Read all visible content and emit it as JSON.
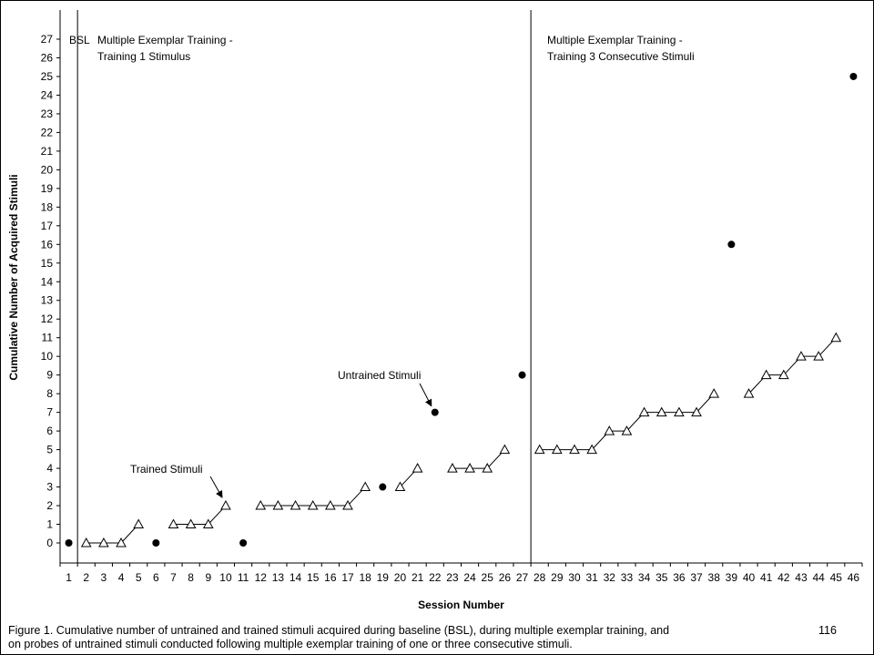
{
  "chart_data": {
    "type": "line",
    "xlabel": "Session Number",
    "ylabel": "Cumulative Number of Acquired Stimuli",
    "xlim": [
      0.5,
      46.5
    ],
    "ylim": [
      0,
      27
    ],
    "grid": false,
    "x_ticks": [
      1,
      2,
      3,
      4,
      5,
      6,
      7,
      8,
      9,
      10,
      11,
      12,
      13,
      14,
      15,
      16,
      17,
      18,
      19,
      20,
      21,
      22,
      23,
      24,
      25,
      26,
      27,
      28,
      29,
      30,
      31,
      32,
      33,
      34,
      35,
      36,
      37,
      38,
      39,
      40,
      41,
      42,
      43,
      44,
      45,
      46
    ],
    "y_ticks": [
      0,
      1,
      2,
      3,
      4,
      5,
      6,
      7,
      8,
      9,
      10,
      11,
      12,
      13,
      14,
      15,
      16,
      17,
      18,
      19,
      20,
      21,
      22,
      23,
      24,
      25,
      26,
      27
    ],
    "trained_segments": [
      [
        [
          2,
          0
        ],
        [
          3,
          0
        ],
        [
          4,
          0
        ],
        [
          5,
          1
        ]
      ],
      [
        [
          7,
          1
        ],
        [
          8,
          1
        ],
        [
          9,
          1
        ],
        [
          10,
          2
        ]
      ],
      [
        [
          12,
          2
        ],
        [
          13,
          2
        ],
        [
          14,
          2
        ],
        [
          15,
          2
        ],
        [
          16,
          2
        ],
        [
          17,
          2
        ],
        [
          18,
          3
        ]
      ],
      [
        [
          20,
          3
        ],
        [
          21,
          4
        ]
      ],
      [
        [
          23,
          4
        ],
        [
          24,
          4
        ],
        [
          25,
          4
        ],
        [
          26,
          5
        ]
      ],
      [
        [
          28,
          5
        ],
        [
          29,
          5
        ],
        [
          30,
          5
        ],
        [
          31,
          5
        ],
        [
          32,
          6
        ],
        [
          33,
          6
        ],
        [
          34,
          7
        ],
        [
          35,
          7
        ],
        [
          36,
          7
        ],
        [
          37,
          7
        ],
        [
          38,
          8
        ]
      ],
      [
        [
          40,
          8
        ],
        [
          41,
          9
        ],
        [
          42,
          9
        ],
        [
          43,
          10
        ],
        [
          44,
          10
        ],
        [
          45,
          11
        ]
      ]
    ],
    "untrained_points": [
      [
        1,
        0
      ],
      [
        6,
        0
      ],
      [
        11,
        0
      ],
      [
        19,
        3
      ],
      [
        22,
        7
      ],
      [
        27,
        9
      ],
      [
        39,
        16
      ],
      [
        46,
        25
      ]
    ],
    "phase_lines": [
      1.5,
      27.5
    ],
    "phase_labels": {
      "bsl": "BSL",
      "phase1_line1": "Multiple Exemplar Training -",
      "phase1_line2": "Training 1 Stimulus",
      "phase2_line1": "Multiple Exemplar Training -",
      "phase2_line2": "Training 3 Consecutive Stimuli"
    },
    "annotations": {
      "trained": {
        "text": "Trained Stimuli",
        "target": [
          10,
          2
        ]
      },
      "untrained": {
        "text": "Untrained Stimuli",
        "target": [
          22,
          7
        ]
      }
    }
  },
  "caption": {
    "line1": "Figure 1. Cumulative number of untrained and trained stimuli acquired during baseline (BSL), during multiple exemplar training, and",
    "line2": "on probes of untrained stimuli conducted following multiple exemplar training of one or three consecutive stimuli.",
    "page_number": "116"
  }
}
